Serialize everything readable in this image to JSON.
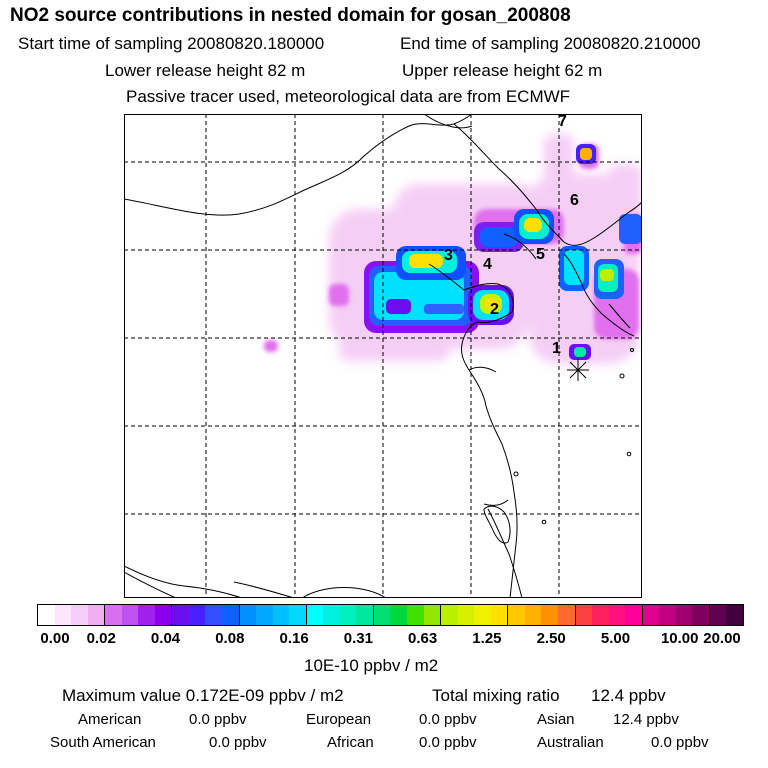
{
  "title": "NO2 source contributions in nested domain for gosan_200808",
  "sampling": {
    "start": "Start time of sampling 20080820.180000",
    "end": "End time of sampling 20080820.210000"
  },
  "release": {
    "lower": "Lower release height   82 m",
    "upper": "Upper release height   62 m"
  },
  "note": "Passive tracer used, meteorological data are from ECMWF",
  "map": {
    "region_labels": [
      "1",
      "2",
      "3",
      "4",
      "5",
      "6",
      "7"
    ]
  },
  "colorbar": {
    "ticks": [
      "0.00",
      "0.02",
      "0.04",
      "0.08",
      "0.16",
      "0.31",
      "0.63",
      "1.25",
      "2.50",
      "5.00",
      "10.00",
      "20.00"
    ],
    "colors": [
      "#ffffff",
      "#fbe6fb",
      "#f6cdf6",
      "#f0b0f0",
      "#d870ee",
      "#c050f0",
      "#a020f0",
      "#8a00ee",
      "#6a10f0",
      "#4a20ff",
      "#3050ff",
      "#1060ff",
      "#0090ff",
      "#00a8ff",
      "#00c0ff",
      "#00d8ff",
      "#00ffff",
      "#00f0e0",
      "#00f0c0",
      "#00e8a0",
      "#00e070",
      "#00d840",
      "#40e000",
      "#90e800",
      "#b8f000",
      "#d8f000",
      "#f0f000",
      "#ffe000",
      "#ffc800",
      "#ffb000",
      "#ff9000",
      "#ff6830",
      "#ff4040",
      "#ff2060",
      "#ff1080",
      "#ff0099",
      "#e00090",
      "#c00080",
      "#a00070",
      "#800060",
      "#600050",
      "#400040"
    ],
    "unit": "10E-10 ppbv / m2"
  },
  "summary": {
    "maximum": "Maximum value  0.172E-09 ppbv / m2",
    "total": "Total mixing ratio",
    "total_value": "12.4 ppbv",
    "american_label": "American",
    "american_value": "0.0 ppbv",
    "european_label": "European",
    "european_value": "0.0 ppbv",
    "asian_label": "Asian",
    "asian_value": "12.4 ppbv",
    "south_american_label": "South American",
    "south_american_value": "0.0 ppbv",
    "african_label": "African",
    "african_value": "0.0 ppbv",
    "australian_label": "Australian",
    "australian_value": "0.0 ppbv"
  }
}
